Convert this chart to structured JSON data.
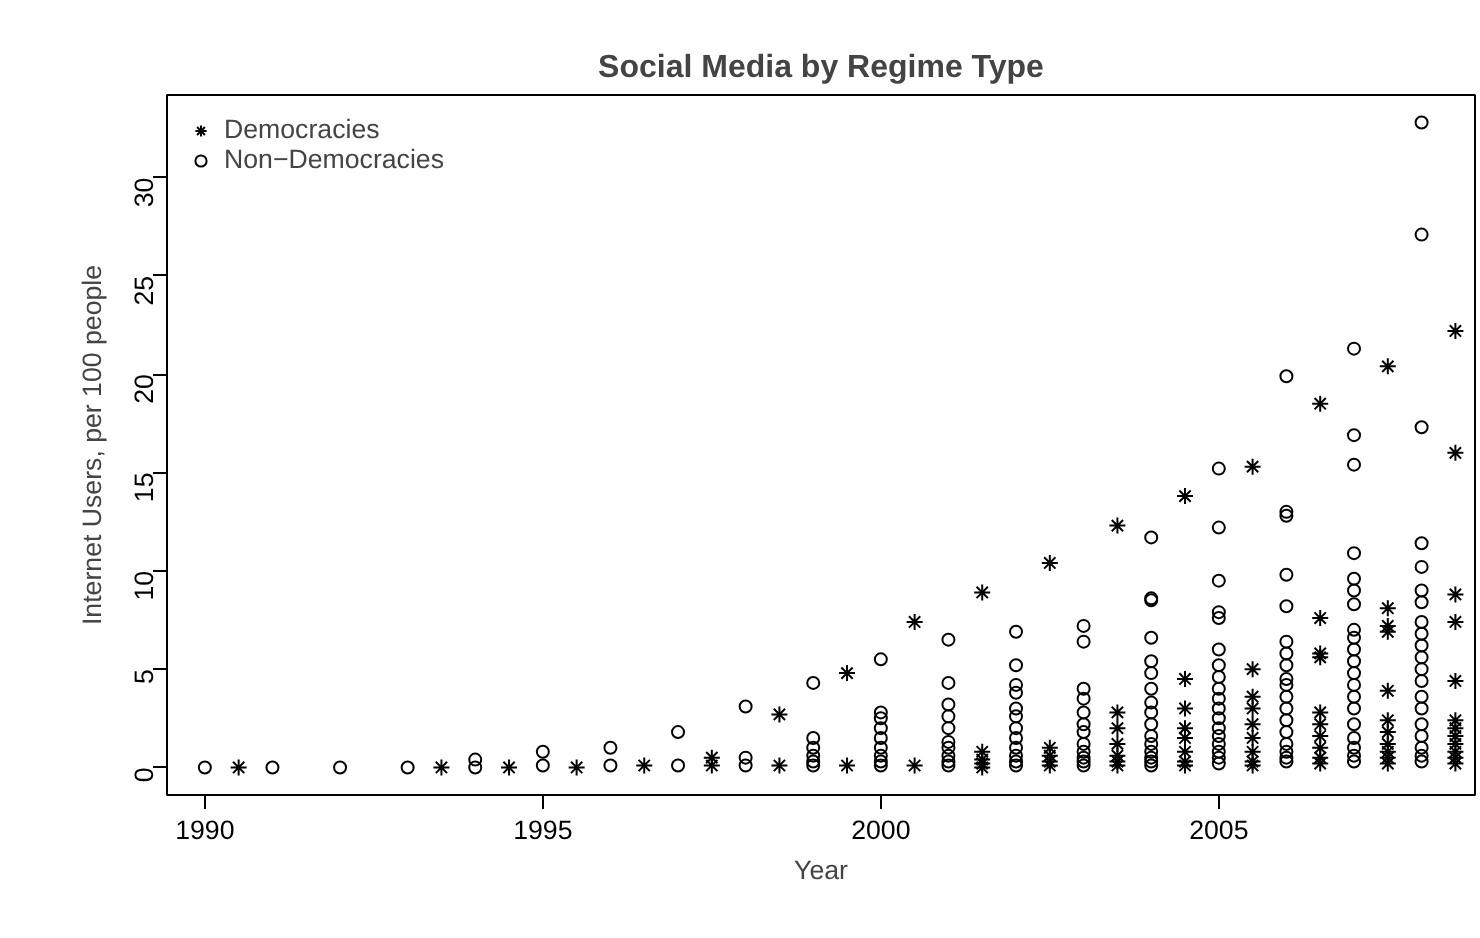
{
  "chart_data": {
    "type": "scatter",
    "title": "Social Media by Regime Type",
    "xlabel": "Year",
    "ylabel": "Internet Users, per 100 people",
    "xlim": [
      1989.44,
      2008.79
    ],
    "ylim": [
      -1.4,
      34.2
    ],
    "xticks": [
      1990,
      1995,
      2000,
      2005
    ],
    "yticks": [
      0,
      5,
      10,
      15,
      20,
      25,
      30
    ],
    "grid": false,
    "legend": "top left",
    "series": [
      {
        "name": "Democracies",
        "color": "#000000",
        "marker": "cross",
        "x": [
          1990.5,
          1993.5,
          1994.5,
          1995.5,
          1996.5,
          1997.5,
          1997.5,
          1998.5,
          1998.5,
          1999.5,
          1999.5,
          2000.5,
          2000.5,
          2001.5,
          2001.5,
          2001.5,
          2001.5,
          2001.5,
          2002.5,
          2002.5,
          2002.5,
          2002.5,
          2002.5,
          2003.5,
          2003.5,
          2003.5,
          2003.5,
          2003.5,
          2003.5,
          2003.5,
          2004.5,
          2004.5,
          2004.5,
          2004.5,
          2004.5,
          2004.5,
          2004.5,
          2004.5,
          2005.5,
          2005.5,
          2005.5,
          2005.5,
          2005.5,
          2005.5,
          2005.5,
          2005.5,
          2005.5,
          2006.5,
          2006.5,
          2006.5,
          2006.5,
          2006.5,
          2006.5,
          2006.5,
          2006.5,
          2006.5,
          2006.5,
          2007.5,
          2007.5,
          2007.5,
          2007.5,
          2007.5,
          2007.5,
          2007.5,
          2007.5,
          2007.5,
          2007.5,
          2007.5,
          2008.5,
          2008.5,
          2008.5,
          2008.5,
          2008.5,
          2008.5,
          2008.5,
          2008.5,
          2008.5,
          2008.5,
          2008.5,
          2008.5
        ],
        "values": [
          0,
          0,
          0,
          0,
          0.1,
          0.1,
          0.5,
          0.1,
          2.7,
          0.1,
          4.8,
          0.1,
          7.4,
          0,
          0.2,
          0.4,
          0.8,
          8.9,
          0.1,
          0.3,
          0.6,
          1.0,
          10.4,
          0.1,
          0.3,
          0.6,
          1.2,
          2.0,
          2.8,
          12.3,
          0.1,
          0.3,
          0.8,
          1.5,
          2.0,
          3.0,
          4.5,
          13.8,
          0.1,
          0.3,
          0.8,
          1.5,
          2.2,
          3.0,
          3.6,
          5.0,
          15.3,
          0.2,
          0.5,
          1.0,
          1.6,
          2.2,
          2.8,
          5.6,
          5.8,
          7.6,
          18.5,
          0.2,
          0.5,
          0.8,
          1.2,
          1.8,
          2.4,
          3.9,
          6.9,
          7.2,
          8.1,
          20.4,
          0.2,
          0.5,
          0.8,
          1.2,
          1.6,
          2.0,
          2.4,
          4.4,
          7.4,
          8.8,
          16.0,
          22.2
        ]
      },
      {
        "name": "Non−Democracies",
        "color": "#000000",
        "marker": "circle",
        "x": [
          1990,
          1991,
          1992,
          1993,
          1994,
          1994,
          1995,
          1995,
          1996,
          1996,
          1997,
          1997,
          1998,
          1998,
          1998,
          1999,
          1999,
          1999,
          1999,
          1999,
          1999,
          2000,
          2000,
          2000,
          2000,
          2000,
          2000,
          2000,
          2000,
          2000,
          2001,
          2001,
          2001,
          2001,
          2001,
          2001,
          2001,
          2001,
          2001,
          2001,
          2002,
          2002,
          2002,
          2002,
          2002,
          2002,
          2002,
          2002,
          2002,
          2002,
          2002,
          2002,
          2003,
          2003,
          2003,
          2003,
          2003,
          2003,
          2003,
          2003,
          2003,
          2003,
          2003,
          2003,
          2004,
          2004,
          2004,
          2004,
          2004,
          2004,
          2004,
          2004,
          2004,
          2004,
          2004,
          2004,
          2004,
          2004,
          2004,
          2004,
          2005,
          2005,
          2005,
          2005,
          2005,
          2005,
          2005,
          2005,
          2005,
          2005,
          2005,
          2005,
          2005,
          2005,
          2005,
          2005,
          2005,
          2005,
          2006,
          2006,
          2006,
          2006,
          2006,
          2006,
          2006,
          2006,
          2006,
          2006,
          2006,
          2006,
          2006,
          2006,
          2006,
          2006,
          2006,
          2006,
          2007,
          2007,
          2007,
          2007,
          2007,
          2007,
          2007,
          2007,
          2007,
          2007,
          2007,
          2007,
          2007,
          2007,
          2007,
          2007,
          2007,
          2007,
          2007,
          2007,
          2008,
          2008,
          2008,
          2008,
          2008,
          2008,
          2008,
          2008,
          2008,
          2008,
          2008,
          2008,
          2008,
          2008,
          2008,
          2008,
          2008,
          2008,
          2008,
          2008
        ],
        "values": [
          0,
          0,
          0,
          0,
          0,
          0.4,
          0.1,
          0.8,
          0.1,
          1.0,
          0.1,
          1.8,
          0.1,
          0.5,
          3.1,
          0.1,
          0.3,
          0.6,
          1.0,
          1.5,
          4.3,
          0.1,
          0.3,
          0.6,
          1.0,
          1.5,
          2.0,
          2.5,
          2.8,
          5.5,
          0.1,
          0.3,
          0.6,
          1.0,
          1.3,
          2.0,
          2.6,
          3.2,
          4.3,
          6.5,
          0.1,
          0.3,
          0.6,
          1.0,
          1.5,
          2.0,
          2.6,
          3.0,
          3.8,
          4.2,
          5.2,
          6.9,
          0.1,
          0.3,
          0.5,
          0.8,
          1.2,
          1.8,
          2.2,
          2.8,
          3.5,
          4.0,
          6.4,
          7.2,
          0.1,
          0.3,
          0.5,
          0.8,
          1.2,
          1.6,
          2.2,
          2.8,
          3.3,
          4.0,
          4.8,
          5.4,
          6.6,
          8.5,
          8.6,
          11.7,
          0.2,
          0.5,
          0.8,
          1.2,
          1.6,
          2.0,
          2.5,
          3.0,
          3.5,
          4.0,
          4.6,
          5.2,
          6.0,
          7.6,
          7.9,
          9.5,
          12.2,
          15.2,
          0.3,
          0.5,
          0.8,
          1.2,
          1.8,
          2.4,
          3.0,
          3.6,
          4.2,
          4.5,
          5.2,
          5.8,
          6.4,
          8.2,
          9.8,
          12.8,
          13.0,
          19.9,
          0.3,
          0.6,
          1.0,
          1.5,
          2.2,
          3.0,
          3.6,
          4.2,
          4.8,
          5.4,
          6.0,
          6.6,
          7.0,
          8.3,
          9.0,
          9.6,
          10.9,
          15.4,
          16.9,
          21.3,
          0.3,
          0.6,
          1.0,
          1.6,
          2.2,
          3.0,
          3.6,
          4.4,
          5.0,
          5.6,
          6.2,
          6.8,
          7.4,
          8.4,
          9.0,
          10.2,
          11.4,
          17.3,
          27.1,
          32.8
        ]
      }
    ]
  }
}
